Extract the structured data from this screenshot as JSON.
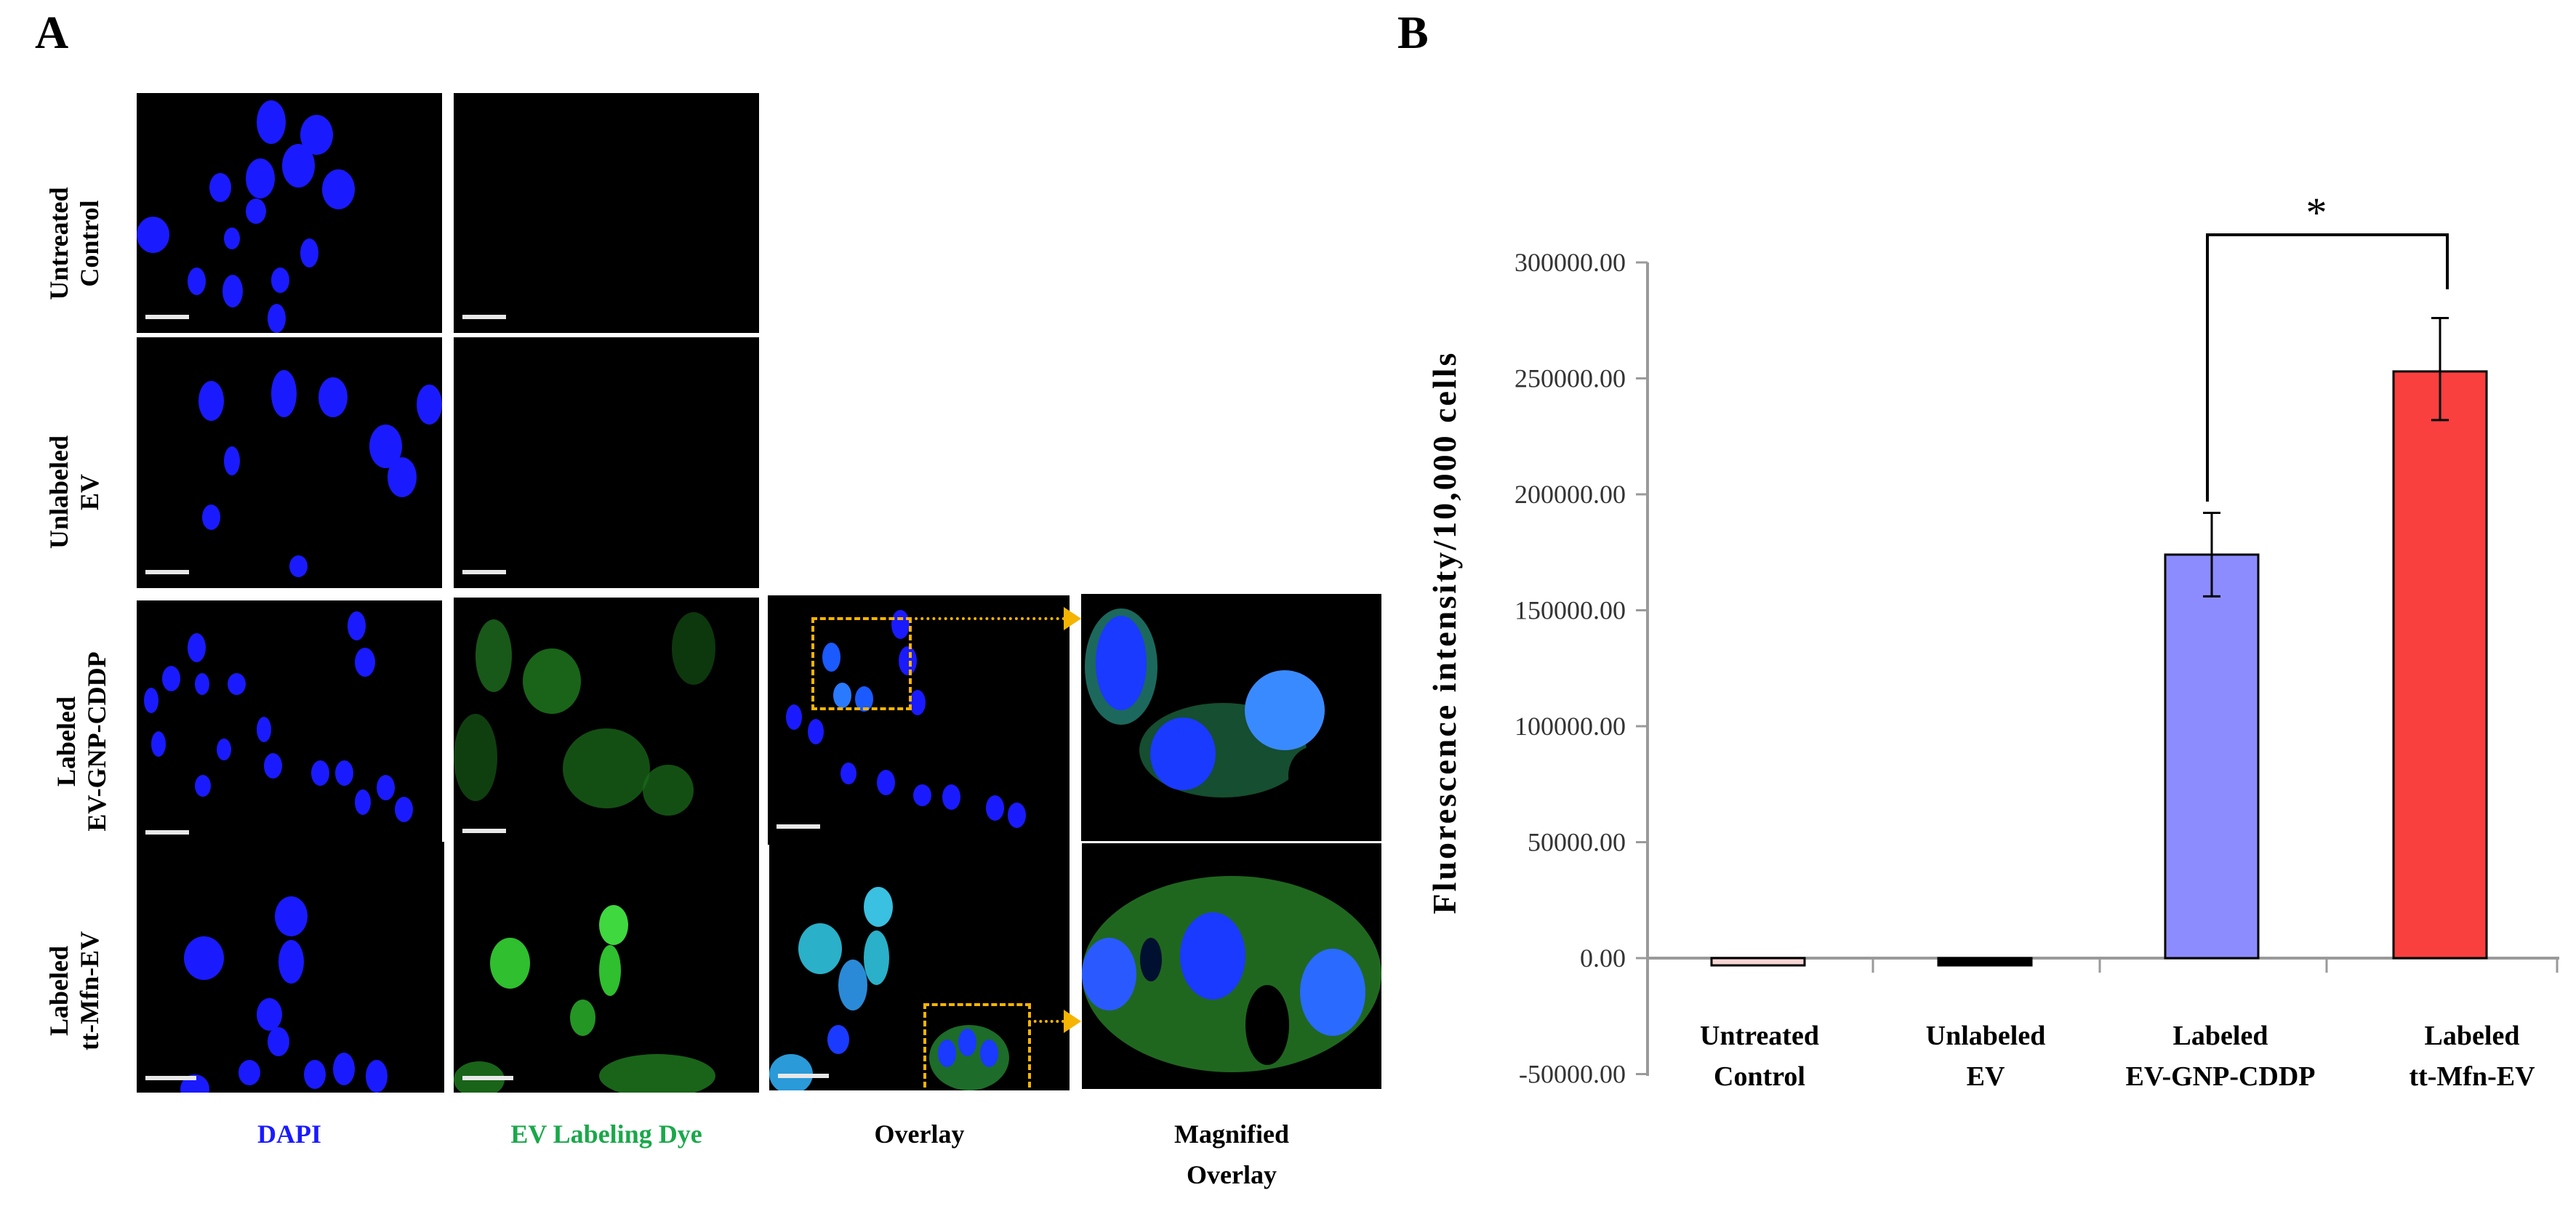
{
  "panel_a": {
    "letter": "A",
    "row_labels": [
      {
        "line1": "Untreated",
        "line2": "Control"
      },
      {
        "line1": "Unlabeled",
        "line2": "EV"
      },
      {
        "line1": "Labeled",
        "line2": "EV-GNP-CDDP"
      },
      {
        "line1": "Labeled",
        "line2": "tt-Mfn-EV"
      }
    ],
    "column_labels": [
      {
        "text": "DAPI",
        "color": "#1a1aff"
      },
      {
        "text": "EV Labeling Dye",
        "color": "#1aa84a"
      },
      {
        "text": "Overlay",
        "color": "#000000"
      },
      {
        "line1": "Magnified",
        "line2": "Overlay",
        "color": "#000000"
      }
    ],
    "colors": {
      "dapi": "#1a1aff",
      "dye": "#2fbf2f",
      "zoom_box": "#f5b400",
      "scale_bar": "#e8e8e8"
    }
  },
  "panel_b": {
    "letter": "B",
    "significance": "*"
  },
  "chart_data": {
    "type": "bar",
    "title": "",
    "xlabel": "",
    "ylabel": "Fluorescence  intensity/10,000  cells",
    "categories": [
      "Untreated Control",
      "Unlabeled EV",
      "Labeled EV-GNP-CDDP",
      "Labeled tt-Mfn-EV"
    ],
    "category_lines": [
      [
        "Untreated",
        "Control"
      ],
      [
        "Unlabeled",
        "EV"
      ],
      [
        "Labeled",
        "EV-GNP-CDDP"
      ],
      [
        "Labeled",
        "tt-Mfn-EV"
      ]
    ],
    "values": [
      -3000,
      -3000,
      174000,
      253000
    ],
    "error_low": [
      -3500,
      -3500,
      156000,
      232000
    ],
    "error_high": [
      -2500,
      -2500,
      192000,
      276000
    ],
    "colors": [
      "#f6d5d5",
      "#000000",
      "#8c8cff",
      "#fa3f3f"
    ],
    "ylim": [
      -50000,
      300000
    ],
    "yticks": [
      "300000.00",
      "250000.00",
      "200000.00",
      "150000.00",
      "100000.00",
      "50000.00",
      "0.00",
      "-50000.00"
    ],
    "ytick_values": [
      300000,
      250000,
      200000,
      150000,
      100000,
      50000,
      0,
      -50000
    ],
    "grid": false,
    "legend": null,
    "annotations": [
      {
        "text": "*",
        "between": [
          "Labeled EV-GNP-CDDP",
          "Labeled tt-Mfn-EV"
        ],
        "type": "significance-bracket"
      }
    ]
  }
}
